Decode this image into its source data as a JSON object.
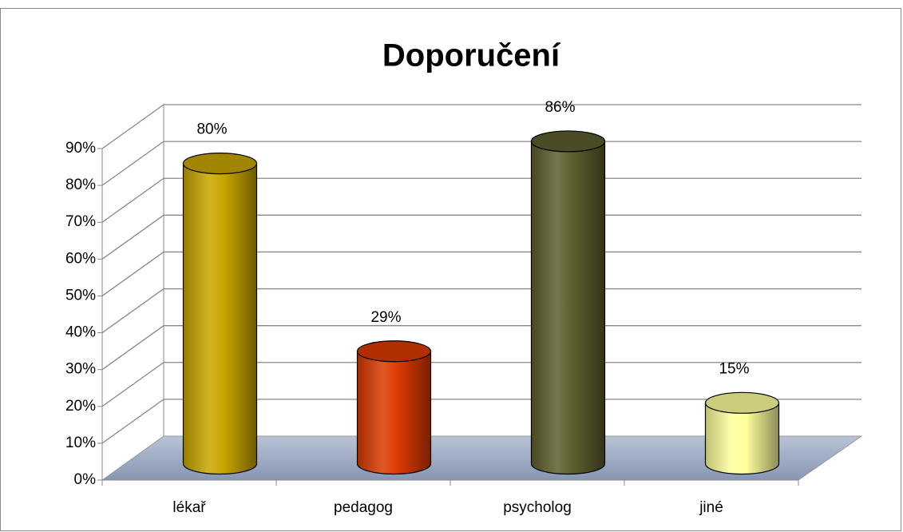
{
  "chart_data": {
    "type": "bar3d",
    "title": "Doporučení",
    "categories": [
      "lékař",
      "pedagog",
      "psycholog",
      "jiné"
    ],
    "values": [
      80,
      29,
      86,
      15
    ],
    "value_labels": [
      "80%",
      "29%",
      "86%",
      "15%"
    ],
    "colors": [
      "#c9a600",
      "#dc3a02",
      "#5e5f2f",
      "#ffff9c"
    ],
    "ylim": [
      0,
      90
    ],
    "yticks": [
      {
        "value": 0,
        "label": "0%"
      },
      {
        "value": 10,
        "label": "10%"
      },
      {
        "value": 20,
        "label": "20%"
      },
      {
        "value": 30,
        "label": "30%"
      },
      {
        "value": 40,
        "label": "40%"
      },
      {
        "value": 50,
        "label": "50%"
      },
      {
        "value": 60,
        "label": "60%"
      },
      {
        "value": 70,
        "label": "70%"
      },
      {
        "value": 80,
        "label": "80%"
      },
      {
        "value": 90,
        "label": "90%"
      }
    ],
    "grid": true
  }
}
